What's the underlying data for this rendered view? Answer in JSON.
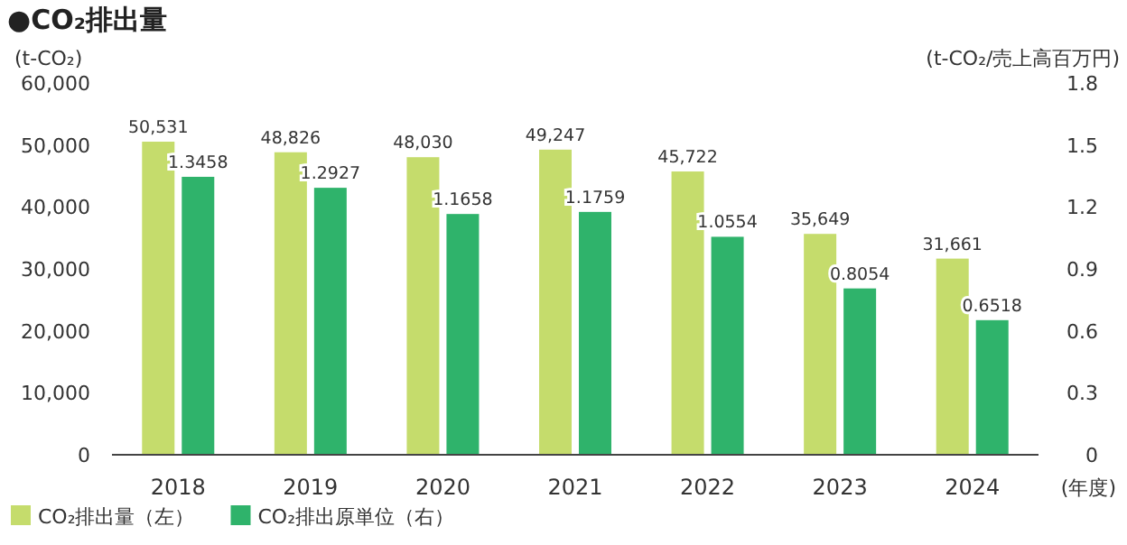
{
  "chart_data": {
    "type": "bar",
    "title": "●CO₂排出量",
    "ylabel": "(t-CO₂)",
    "y2label": "(t-CO₂/売上高百万円)",
    "xlabel": "(年度)",
    "categories": [
      "2018",
      "2019",
      "2020",
      "2021",
      "2022",
      "2023",
      "2024"
    ],
    "series": [
      {
        "name": "CO₂排出量（左）",
        "color": "#c5dc6c",
        "values": [
          50531,
          48826,
          48030,
          49247,
          45722,
          35649,
          31661
        ],
        "value_labels": [
          "50,531",
          "48,826",
          "48,030",
          "49,247",
          "45,722",
          "35,649",
          "31,661"
        ]
      },
      {
        "name": "CO₂排出原単位（右）",
        "color": "#2fb36b",
        "axis": "y2",
        "values": [
          1.3458,
          1.2927,
          1.1658,
          1.1759,
          1.0554,
          0.8054,
          0.6518
        ],
        "value_labels": [
          "1.3458",
          "1.2927",
          "1.1658",
          "1.1759",
          "1.0554",
          "0.8054",
          "0.6518"
        ]
      }
    ],
    "ylim": [
      0,
      60000
    ],
    "yticks": [
      0,
      {
        "value": 10000,
        "label": "10,000"
      },
      {
        "value": 20000,
        "label": "20,000"
      },
      {
        "value": 30000,
        "label": "30,000"
      },
      {
        "value": 40000,
        "label": "40,000"
      },
      {
        "value": 50000,
        "label": "50,000"
      },
      {
        "value": 60000,
        "label": "60,000"
      }
    ],
    "y2lim": [
      0,
      1.8
    ],
    "y2ticks": [
      0,
      0.3,
      0.6,
      0.9,
      1.2,
      1.5,
      1.8
    ],
    "legend": "bottom left",
    "grid": false
  }
}
